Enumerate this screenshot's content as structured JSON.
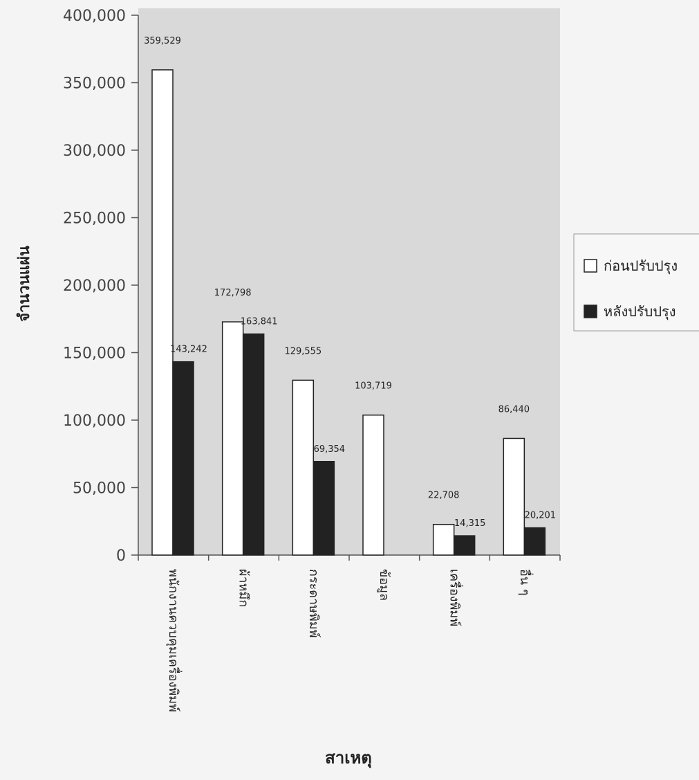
{
  "chart_data": {
    "type": "bar",
    "title": "",
    "xlabel": "สาเหตุ",
    "ylabel": "จำนวนแผ่น",
    "ylim": [
      0,
      400000
    ],
    "yticks": [
      0,
      50000,
      100000,
      150000,
      200000,
      250000,
      300000,
      350000,
      400000
    ],
    "ytick_labels": [
      "0",
      "50,000",
      "100,000",
      "150,000",
      "200,000",
      "250,000",
      "300,000",
      "350,000",
      "400,000"
    ],
    "categories": [
      "พนักงานควบคุมเครื่องพิมพ์",
      "ผ้าหมึก",
      "กระดาษพิมพ์",
      "ข้อมูล",
      "เครื่องพิมพ์",
      "อื่น ๆ"
    ],
    "series": [
      {
        "name": "ก่อนปรับปรุง",
        "color": "#ffffff",
        "values": [
          359529,
          172798,
          129555,
          103719,
          22708,
          86440
        ],
        "labels": [
          "359,529",
          "172,798",
          "129,555",
          "103,719",
          "22,708",
          "86,440"
        ]
      },
      {
        "name": "หลังปรับปรุง",
        "color": "#222222",
        "values": [
          143242,
          163841,
          69354,
          null,
          14315,
          20201
        ],
        "labels": [
          "143,242",
          "163,841",
          "69,354",
          "",
          "14,315",
          "20,201"
        ]
      }
    ],
    "grid": false,
    "legend_position": "right"
  }
}
